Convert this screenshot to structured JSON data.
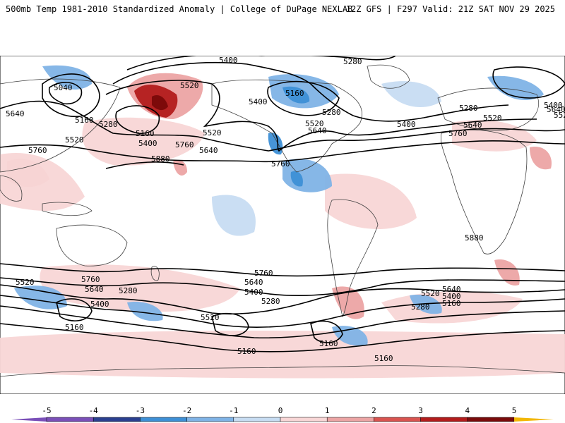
{
  "header": {
    "title": "500mb Temp 1981-2010 Standardized Anomaly | College of DuPage NEXLAB",
    "run": "12Z GFS | F297 Valid: 21Z SAT NOV 29 2025"
  },
  "colors": {
    "neg5": "#7a4fb8",
    "neg4": "#2a3f8f",
    "neg3": "#3d8fd6",
    "neg2": "#7fb3e6",
    "neg1": "#c7dcf2",
    "zero": "#ffffff",
    "pos1": "#f8d6d6",
    "pos2": "#eca4a4",
    "pos3": "#d9534f",
    "pos4": "#b31b1b",
    "pos5": "#7a0a0a",
    "max": "#f2b705",
    "contour": "#000000",
    "coast": "#404040"
  },
  "colorbar": {
    "ticks": [
      "-5",
      "-4",
      "-3",
      "-2",
      "-1",
      "0",
      "1",
      "2",
      "3",
      "4",
      "5"
    ]
  },
  "contour_labels": [
    "5280",
    "5400",
    "5280",
    "5520",
    "5040",
    "5160",
    "5640",
    "5160",
    "5280",
    "5520",
    "5160",
    "5400",
    "5520",
    "5760",
    "5640",
    "5880",
    "5400",
    "5520",
    "5640",
    "5760",
    "5280",
    "5400",
    "5280",
    "5520",
    "5640",
    "5760",
    "5400",
    "5640",
    "5520",
    "5760",
    "5880",
    "5760",
    "5640",
    "5400",
    "5280",
    "5520",
    "5640",
    "5760",
    "5280",
    "5520",
    "5400",
    "5160",
    "5160",
    "5160",
    "5640",
    "5520",
    "5400",
    "5160",
    "5280",
    "5160"
  ]
}
